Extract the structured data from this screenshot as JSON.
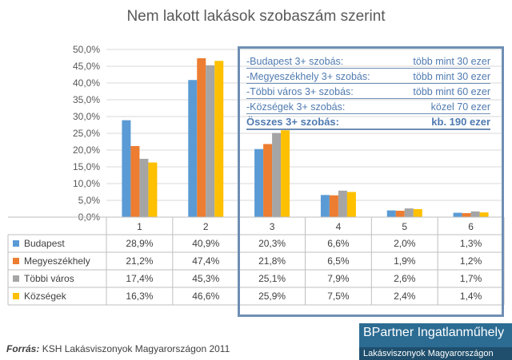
{
  "chart_data": {
    "type": "bar",
    "title": "Nem lakott lakások szobaszám szerint",
    "categories": [
      "1",
      "2",
      "3",
      "4",
      "5",
      "6"
    ],
    "ylim": [
      0,
      50
    ],
    "yticks": [
      "0,0%",
      "5,0%",
      "10,0%",
      "15,0%",
      "20,0%",
      "25,0%",
      "30,0%",
      "35,0%",
      "40,0%",
      "45,0%",
      "50,0%"
    ],
    "grid": true,
    "legend": "table-left",
    "series": [
      {
        "name": "Budapest",
        "color": "#5b9bd5",
        "values": [
          28.9,
          40.9,
          20.3,
          6.6,
          2.0,
          1.3
        ],
        "labels": [
          "28,9%",
          "40,9%",
          "20,3%",
          "6,6%",
          "2,0%",
          "1,3%"
        ]
      },
      {
        "name": "Megyeszékhely",
        "color": "#ed7d31",
        "values": [
          21.2,
          47.4,
          21.8,
          6.5,
          1.9,
          1.2
        ],
        "labels": [
          "21,2%",
          "47,4%",
          "21,8%",
          "6,5%",
          "1,9%",
          "1,2%"
        ]
      },
      {
        "name": "Többi város",
        "color": "#a5a5a5",
        "values": [
          17.4,
          45.3,
          25.1,
          7.9,
          2.6,
          1.7
        ],
        "labels": [
          "17,4%",
          "45,3%",
          "25,1%",
          "7,9%",
          "2,6%",
          "1,7%"
        ]
      },
      {
        "name": "Községek",
        "color": "#ffc000",
        "values": [
          16.3,
          46.6,
          25.9,
          7.5,
          2.4,
          1.4
        ],
        "labels": [
          "16,3%",
          "46,6%",
          "25,9%",
          "7,5%",
          "2,4%",
          "1,4%"
        ]
      }
    ]
  },
  "annotation": {
    "lines": [
      {
        "left": "-Budapest 3+ szobás:",
        "right": "több mint 30 ezer"
      },
      {
        "left": "-Megyeszékhely 3+ szobás:",
        "right": "több mint 30 ezer"
      },
      {
        "left": "-Többi város 3+ szobás:",
        "right": "több mint 60 ezer"
      },
      {
        "left": "-Községek 3+ szobás:",
        "right": "közel 70 ezer"
      }
    ],
    "total": {
      "left": "Összes 3+ szobás:",
      "right": "kb.  190 ezer"
    }
  },
  "source": {
    "label": "Forrás:",
    "text": "KSH Lakásviszonyok Magyarországon 2011"
  },
  "brand": {
    "name": "BPartner Ingatlanműhely",
    "subtitle": "Lakásviszonyok Magyarországon"
  }
}
